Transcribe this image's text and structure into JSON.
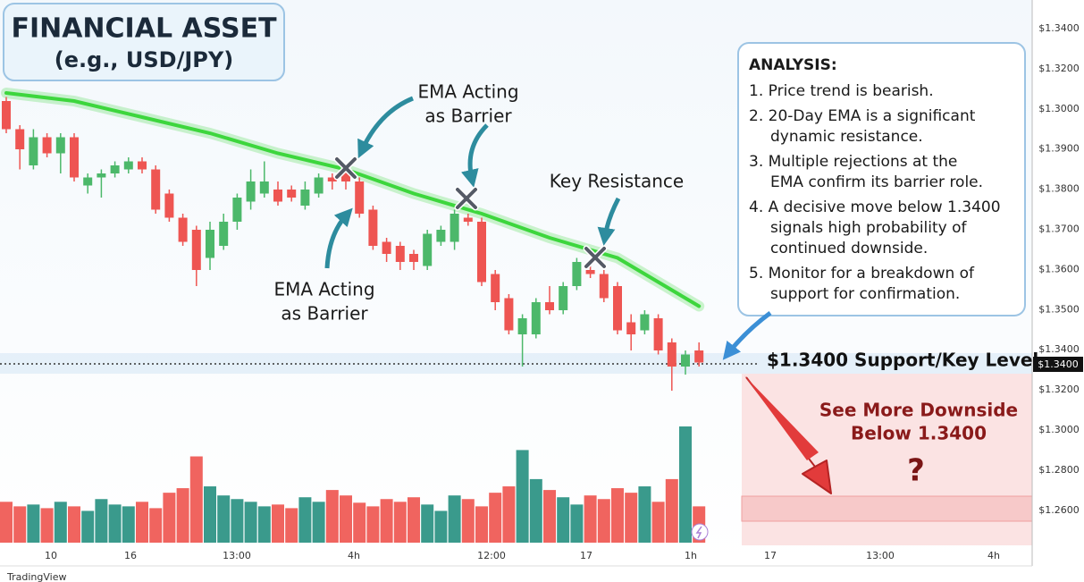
{
  "chart_data": {
    "type": "candlestick",
    "title": "FINANCIAL ASSET",
    "subtitle": "(e.g., USD/JPY)",
    "ylim": [
      1.32,
      1.43
    ],
    "up_color": "#4cb86a",
    "down_color": "#ee5552",
    "volume_up_color": "#3a9a8c",
    "volume_down_color": "#f0645f",
    "ema_color": "#3dd63d",
    "series": {
      "open": [
        1.402,
        1.395,
        1.386,
        1.393,
        1.389,
        1.393,
        1.381,
        1.383,
        1.384,
        1.385,
        1.387,
        1.385,
        1.379,
        1.373,
        1.37,
        1.363,
        1.366,
        1.372,
        1.377,
        1.379,
        1.38,
        1.38,
        1.376,
        1.379,
        1.383,
        1.384,
        1.382,
        1.375,
        1.367,
        1.366,
        1.364,
        1.361,
        1.367,
        1.367,
        1.373,
        1.372,
        1.359,
        1.353,
        1.344,
        1.344,
        1.352,
        1.35,
        1.356,
        1.36,
        1.359,
        1.356,
        1.347,
        1.345,
        1.348,
        1.342,
        1.336,
        1.34
      ],
      "close": [
        1.395,
        1.39,
        1.393,
        1.389,
        1.393,
        1.383,
        1.383,
        1.384,
        1.386,
        1.387,
        1.385,
        1.375,
        1.373,
        1.367,
        1.36,
        1.37,
        1.372,
        1.378,
        1.382,
        1.382,
        1.377,
        1.378,
        1.38,
        1.383,
        1.382,
        1.382,
        1.374,
        1.366,
        1.364,
        1.362,
        1.362,
        1.369,
        1.37,
        1.374,
        1.372,
        1.357,
        1.352,
        1.345,
        1.348,
        1.352,
        1.35,
        1.356,
        1.362,
        1.359,
        1.353,
        1.345,
        1.344,
        1.349,
        1.34,
        1.336,
        1.339,
        1.337
      ],
      "high": [
        1.403,
        1.396,
        1.395,
        1.394,
        1.394,
        1.394,
        1.384,
        1.385,
        1.387,
        1.388,
        1.388,
        1.386,
        1.38,
        1.374,
        1.371,
        1.372,
        1.374,
        1.379,
        1.385,
        1.387,
        1.382,
        1.381,
        1.382,
        1.384,
        1.384,
        1.386,
        1.383,
        1.376,
        1.368,
        1.367,
        1.365,
        1.37,
        1.371,
        1.375,
        1.374,
        1.373,
        1.36,
        1.354,
        1.349,
        1.353,
        1.356,
        1.357,
        1.363,
        1.362,
        1.36,
        1.357,
        1.349,
        1.35,
        1.349,
        1.343,
        1.34,
        1.342
      ],
      "low": [
        1.394,
        1.385,
        1.385,
        1.388,
        1.384,
        1.382,
        1.379,
        1.378,
        1.383,
        1.384,
        1.384,
        1.374,
        1.372,
        1.366,
        1.356,
        1.36,
        1.365,
        1.37,
        1.375,
        1.378,
        1.376,
        1.377,
        1.375,
        1.378,
        1.38,
        1.38,
        1.373,
        1.365,
        1.362,
        1.36,
        1.36,
        1.36,
        1.366,
        1.365,
        1.371,
        1.356,
        1.35,
        1.344,
        1.336,
        1.343,
        1.349,
        1.349,
        1.355,
        1.358,
        1.352,
        1.344,
        1.34,
        1.344,
        1.339,
        1.33,
        1.334,
        1.336
      ],
      "volume": [
        45,
        40,
        42,
        38,
        45,
        40,
        35,
        48,
        42,
        40,
        45,
        38,
        55,
        60,
        95,
        62,
        52,
        48,
        45,
        40,
        42,
        38,
        50,
        45,
        58,
        52,
        44,
        40,
        48,
        45,
        50,
        42,
        35,
        52,
        48,
        40,
        55,
        62,
        102,
        70,
        58,
        50,
        42,
        52,
        48,
        60,
        55,
        62,
        45,
        70,
        128,
        40
      ]
    },
    "ema": {
      "x": [
        0,
        5,
        10,
        15,
        20,
        25,
        30,
        35,
        40,
        45,
        50,
        51
      ],
      "values": [
        1.404,
        1.402,
        1.398,
        1.394,
        1.389,
        1.385,
        1.379,
        1.374,
        1.368,
        1.363,
        1.353,
        1.351
      ]
    },
    "x_labels": [
      "10",
      "16",
      "13:00",
      "4h",
      "12:00",
      "17",
      "1h",
      "17",
      "13:00",
      "4h"
    ],
    "price_axis_labels": [
      "$1.3400",
      "$1.3200",
      "$1.3000",
      "$1.3900",
      "$1.3800",
      "$1.3700",
      "$1.3600",
      "$1.3500",
      "$1.3400",
      "$1.3200",
      "$1.3000",
      "$1.2800",
      "$1.2600"
    ],
    "annotations": [
      {
        "lines": [
          "EMA Acting",
          "as Barrier"
        ]
      },
      {
        "lines": [
          "EMA Acting",
          "as Barrier"
        ]
      },
      {
        "lines": [
          "Key Resistance"
        ]
      }
    ],
    "analysis": {
      "heading": "ANALYSIS:",
      "items": [
        [
          "1. Price trend is bearish."
        ],
        [
          "2. 20-Day EMA is a significant",
          "dynamic resistance."
        ],
        [
          "3. Multiple rejections at the",
          "EMA confirm its barrier role."
        ],
        [
          "4. A decisive move below 1.3400",
          "signals high probability of",
          "continued downside."
        ],
        [
          "5. Monitor for a breakdown of",
          "support for confirmation."
        ]
      ]
    },
    "support_label": "$1.3400 Support/Key Level",
    "price_tag": "$1.3400",
    "downside": {
      "lines": [
        "See More Downside",
        "Below 1.3400"
      ],
      "mark": "?"
    },
    "watermark": "TradingView"
  }
}
